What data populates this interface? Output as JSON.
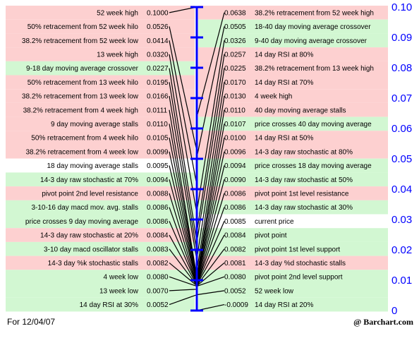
{
  "chart_data": {
    "type": "table",
    "title": "",
    "ylim": [
      0,
      0.1
    ],
    "y_ticks": [
      "0",
      "0.01",
      "0.02",
      "0.03",
      "0.04",
      "0.05",
      "0.06",
      "0.07",
      "0.08",
      "0.09",
      "0.10"
    ],
    "current_price": 0.0085,
    "left": [
      {
        "label": "52 week high",
        "value": "0.1000",
        "color": "red"
      },
      {
        "label": "50% retracement from 52 week hilo",
        "value": "0.0526",
        "color": "red"
      },
      {
        "label": "38.2% retracement from 52 week low",
        "value": "0.0414",
        "color": "red"
      },
      {
        "label": "13 week high",
        "value": "0.0320",
        "color": "red"
      },
      {
        "label": "9-18 day moving average crossover",
        "value": "0.0227",
        "color": "green"
      },
      {
        "label": "50% retracement from 13 week hilo",
        "value": "0.0195",
        "color": "red"
      },
      {
        "label": "38.2% retracement from 13 week low",
        "value": "0.0166",
        "color": "red"
      },
      {
        "label": "38.2% retracement from 4 week high",
        "value": "0.0111",
        "color": "red"
      },
      {
        "label": "9 day moving average stalls",
        "value": "0.0110",
        "color": "red"
      },
      {
        "label": "50% retracement from 4 week hilo",
        "value": "0.0105",
        "color": "red"
      },
      {
        "label": "38.2% retracement from 4 week low",
        "value": "0.0099",
        "color": "red"
      },
      {
        "label": "18 day moving average stalls",
        "value": "0.0095",
        "color": "white"
      },
      {
        "label": "14-3 day raw stochastic at 70%",
        "value": "0.0094",
        "color": "green"
      },
      {
        "label": "pivot point 2nd level resistance",
        "value": "0.0088",
        "color": "red"
      },
      {
        "label": "3-10-16 day macd mov. avg. stalls",
        "value": "0.0086",
        "color": "green"
      },
      {
        "label": "price crosses 9 day moving average",
        "value": "0.0086",
        "color": "green"
      },
      {
        "label": "14-3 day raw stochastic at 20%",
        "value": "0.0084",
        "color": "red"
      },
      {
        "label": "3-10 day macd oscillator stalls",
        "value": "0.0083",
        "color": "green"
      },
      {
        "label": "14-3 day %k stochastic stalls",
        "value": "0.0082",
        "color": "red"
      },
      {
        "label": "4 week low",
        "value": "0.0080",
        "color": "green"
      },
      {
        "label": "13 week low",
        "value": "0.0070",
        "color": "green"
      },
      {
        "label": "14 day RSI at 30%",
        "value": "0.0052",
        "color": "green"
      }
    ],
    "right": [
      {
        "label": "38.2% retracement from 52 week high",
        "value": "0.0638",
        "color": "red"
      },
      {
        "label": "18-40 day moving average crossover",
        "value": "0.0505",
        "color": "green"
      },
      {
        "label": "9-40 day moving average crossover",
        "value": "0.0326",
        "color": "green"
      },
      {
        "label": "14 day RSI at 80%",
        "value": "0.0257",
        "color": "red"
      },
      {
        "label": "38.2% retracement from 13 week high",
        "value": "0.0225",
        "color": "red"
      },
      {
        "label": "14 day RSI at 70%",
        "value": "0.0170",
        "color": "red"
      },
      {
        "label": "4 week high",
        "value": "0.0130",
        "color": "red"
      },
      {
        "label": "40 day moving average stalls",
        "value": "0.0110",
        "color": "red"
      },
      {
        "label": "price crosses 40 day moving average",
        "value": "0.0107",
        "color": "green"
      },
      {
        "label": "14 day RSI at 50%",
        "value": "0.0100",
        "color": "red"
      },
      {
        "label": "14-3 day raw stochastic at 80%",
        "value": "0.0096",
        "color": "red"
      },
      {
        "label": "price crosses 18 day moving average",
        "value": "0.0094",
        "color": "green"
      },
      {
        "label": "14-3 day raw stochastic at 50%",
        "value": "0.0090",
        "color": "green"
      },
      {
        "label": "pivot point 1st level resistance",
        "value": "0.0086",
        "color": "red"
      },
      {
        "label": "14-3 day raw stochastic at 30%",
        "value": "0.0086",
        "color": "green"
      },
      {
        "label": "current price",
        "value": "0.0085",
        "color": "white"
      },
      {
        "label": "pivot point",
        "value": "0.0084",
        "color": "green"
      },
      {
        "label": "pivot point 1st level support",
        "value": "0.0082",
        "color": "green"
      },
      {
        "label": "14-3 day %d stochastic stalls",
        "value": "0.0081",
        "color": "red"
      },
      {
        "label": "pivot point 2nd level support",
        "value": "0.0080",
        "color": "green"
      },
      {
        "label": "52 week low",
        "value": "0.0052",
        "color": "green"
      },
      {
        "label": "14 day RSI at 20%",
        "value": "-0.0009",
        "color": "green"
      }
    ]
  },
  "footer": {
    "date": "For 12/04/07",
    "brand": "@ Barchart.com"
  },
  "colors": {
    "red": "#fdd0d0",
    "green": "#d2f7d2",
    "white": "#ffffff",
    "axis": "#0000ff",
    "leader": "#000000"
  }
}
